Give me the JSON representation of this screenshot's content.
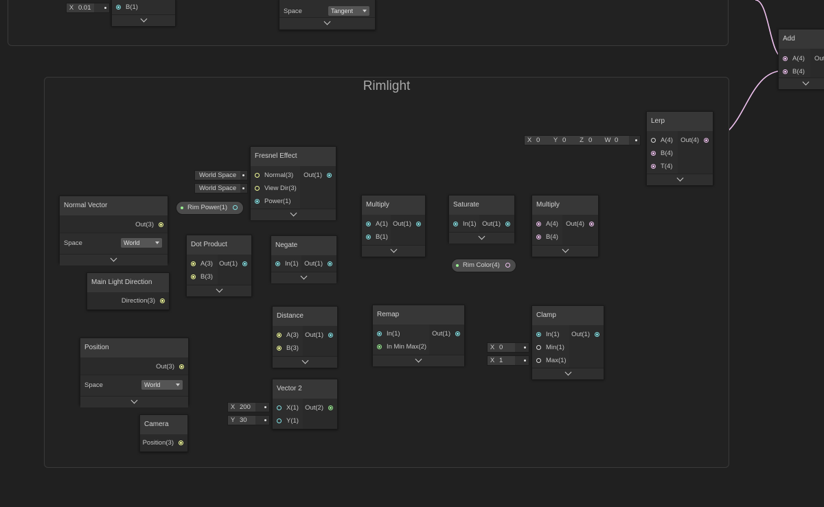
{
  "group": {
    "title": "Rimlight"
  },
  "top_partial": {
    "x_field": {
      "label": "X",
      "value": "0.01"
    },
    "b_input": "B(1)",
    "space_label": "Space",
    "space_value": "Tangent"
  },
  "add_node": {
    "title": "Add",
    "inputs": [
      "A(4)",
      "B(4)"
    ],
    "output": "Out"
  },
  "lerp": {
    "title": "Lerp",
    "inputs": [
      "A(4)",
      "B(4)",
      "T(4)"
    ],
    "output": "Out(4)",
    "a_fields": [
      {
        "label": "X",
        "value": "0"
      },
      {
        "label": "Y",
        "value": "0"
      },
      {
        "label": "Z",
        "value": "0"
      },
      {
        "label": "W",
        "value": "0"
      }
    ]
  },
  "fresnel": {
    "title": "Fresnel Effect",
    "inputs": [
      "Normal(3)",
      "View Dir(3)",
      "Power(1)"
    ],
    "output": "Out(1)",
    "normal_default": "World Space",
    "viewdir_default": "World Space"
  },
  "rim_power": {
    "label": "Rim Power(1)"
  },
  "rim_color": {
    "label": "Rim Color(4)"
  },
  "normal_vector": {
    "title": "Normal Vector",
    "output": "Out(3)",
    "space_label": "Space",
    "space_value": "World"
  },
  "main_light": {
    "title": "Main Light Direction",
    "output": "Direction(3)"
  },
  "dot_product": {
    "title": "Dot Product",
    "inputs": [
      "A(3)",
      "B(3)"
    ],
    "output": "Out(1)"
  },
  "negate": {
    "title": "Negate",
    "inputs": [
      "In(1)"
    ],
    "output": "Out(1)"
  },
  "multiply1": {
    "title": "Multiply",
    "inputs": [
      "A(1)",
      "B(1)"
    ],
    "output": "Out(1)"
  },
  "saturate": {
    "title": "Saturate",
    "inputs": [
      "In(1)"
    ],
    "output": "Out(1)"
  },
  "multiply2": {
    "title": "Multiply",
    "inputs": [
      "A(4)",
      "B(4)"
    ],
    "output": "Out(4)"
  },
  "position": {
    "title": "Position",
    "output": "Out(3)",
    "space_label": "Space",
    "space_value": "World"
  },
  "camera": {
    "title": "Camera",
    "output": "Position(3)"
  },
  "distance": {
    "title": "Distance",
    "inputs": [
      "A(3)",
      "B(3)"
    ],
    "output": "Out(1)"
  },
  "vector2": {
    "title": "Vector 2",
    "inputs": [
      "X(1)",
      "Y(1)"
    ],
    "output": "Out(2)",
    "x_field": {
      "label": "X",
      "value": "200"
    },
    "y_field": {
      "label": "Y",
      "value": "30"
    }
  },
  "remap": {
    "title": "Remap",
    "inputs": [
      "In(1)",
      "In Min Max(2)"
    ],
    "output": "Out(1)"
  },
  "clamp": {
    "title": "Clamp",
    "inputs": [
      "In(1)",
      "Min(1)",
      "Max(1)"
    ],
    "output": "Out(1)",
    "min_field": {
      "label": "X",
      "value": "0"
    },
    "max_field": {
      "label": "X",
      "value": "1"
    }
  },
  "colors": {
    "float": "#84e4e7",
    "vector3": "#f6ff9a",
    "vector4": "#f1c3f1",
    "vector2": "#9aef92"
  }
}
